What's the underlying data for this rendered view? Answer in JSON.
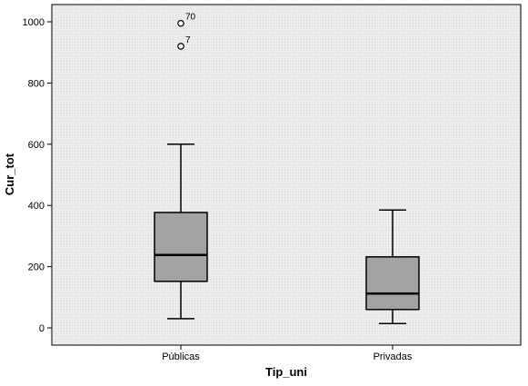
{
  "chart_data": {
    "type": "boxplot",
    "xlabel": "Tip_uni",
    "ylabel": "Cur_tot",
    "ylim": [
      -50,
      1050
    ],
    "yticks": [
      0,
      200,
      400,
      600,
      800,
      1000
    ],
    "categories": [
      "Públicas",
      "Privadas"
    ],
    "boxes": [
      {
        "category": "Públicas",
        "whisker_low": 30,
        "q1": 152,
        "median": 238,
        "q3": 377,
        "whisker_high": 600,
        "outliers": [
          {
            "label": "70",
            "value": 995
          },
          {
            "label": "7",
            "value": 920
          }
        ]
      },
      {
        "category": "Privadas",
        "whisker_low": 14,
        "q1": 60,
        "median": 112,
        "q3": 232,
        "whisker_high": 385,
        "outliers": []
      }
    ],
    "colors": {
      "plot_background": "#ececec",
      "box_fill": "#a3a3a3",
      "line": "#000000"
    }
  }
}
